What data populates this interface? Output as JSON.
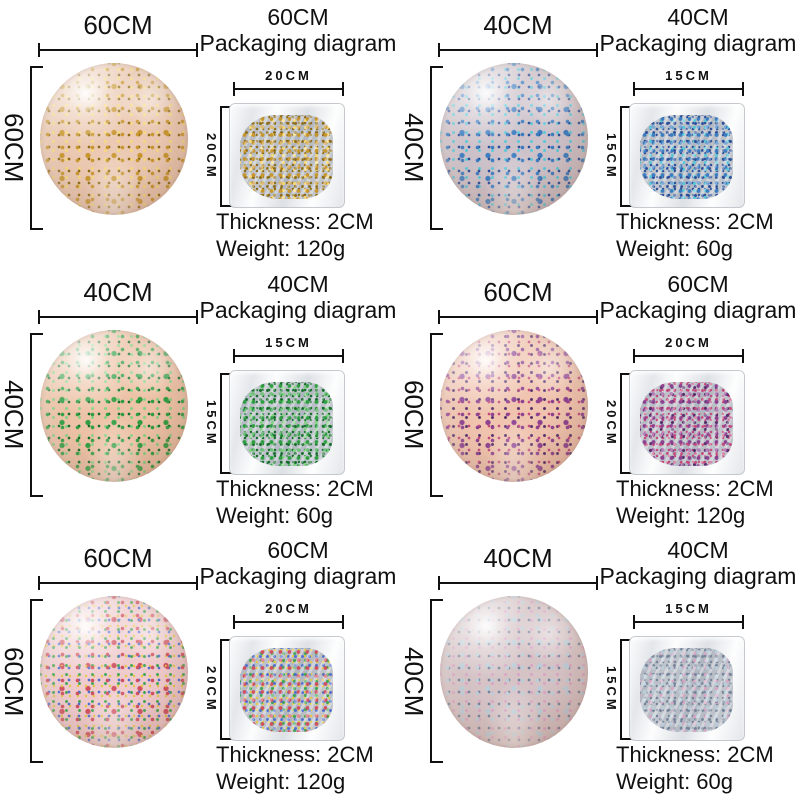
{
  "page": {
    "background": "#ffffff",
    "text_color": "#101010"
  },
  "products": [
    {
      "id": "gold-60cm",
      "ball_diameter_label": "60CM",
      "ball_height_label": "60CM",
      "packaging_title_size": "60CM",
      "packaging_title_text": "Packaging diagram",
      "bag_width_label": "20CM",
      "bag_height_label": "20CM",
      "thickness_text": "Thickness: 2CM",
      "weight_text": "Weight: 120g",
      "glitter_color_name": "gold",
      "colors": {
        "base": "#ebc9b2",
        "glitter1": "#c8962e",
        "glitter2": "#8f6c18",
        "glitter3": "#f7d977"
      }
    },
    {
      "id": "blue-40cm",
      "ball_diameter_label": "40CM",
      "ball_height_label": "40CM",
      "packaging_title_size": "40CM",
      "packaging_title_text": "Packaging diagram",
      "bag_width_label": "15CM",
      "bag_height_label": "15CM",
      "thickness_text": "Thickness: 2CM",
      "weight_text": "Weight: 60g",
      "glitter_color_name": "blue",
      "colors": {
        "base": "#cdc2ca",
        "glitter1": "#3c7cc0",
        "glitter2": "#2b4f99",
        "glitter3": "#56c8d8"
      }
    },
    {
      "id": "green-40cm",
      "ball_diameter_label": "40CM",
      "ball_height_label": "40CM",
      "packaging_title_size": "40CM",
      "packaging_title_text": "Packaging diagram",
      "bag_width_label": "15CM",
      "bag_height_label": "15CM",
      "thickness_text": "Thickness: 2CM",
      "weight_text": "Weight: 60g",
      "glitter_color_name": "green",
      "colors": {
        "base": "#edc3a7",
        "glitter1": "#2f9e42",
        "glitter2": "#156d2a",
        "glitter3": "#82d382"
      }
    },
    {
      "id": "purple-60cm",
      "ball_diameter_label": "60CM",
      "ball_height_label": "60CM",
      "packaging_title_size": "60CM",
      "packaging_title_text": "Packaging diagram",
      "bag_width_label": "20CM",
      "bag_height_label": "20CM",
      "thickness_text": "Thickness: 2CM",
      "weight_text": "Weight: 120g",
      "glitter_color_name": "purple",
      "colors": {
        "base": "#f0c4af",
        "glitter1": "#8c4191",
        "glitter2": "#c4497c",
        "glitter3": "#55306e"
      }
    },
    {
      "id": "multicolor-60cm",
      "ball_diameter_label": "60CM",
      "ball_height_label": "60CM",
      "packaging_title_size": "60CM",
      "packaging_title_text": "Packaging diagram",
      "bag_width_label": "20CM",
      "bag_height_label": "20CM",
      "thickness_text": "Thickness: 2CM",
      "weight_text": "Weight: 120g",
      "glitter_color_name": "multicolor",
      "colors": {
        "base": "#f0cbce",
        "glitter1": "#d05060",
        "glitter2": "#4f6fd0",
        "glitter3": "#43a657",
        "glitter4": "#e3c84a"
      }
    },
    {
      "id": "silver-40cm",
      "ball_diameter_label": "40CM",
      "ball_height_label": "40CM",
      "packaging_title_size": "40CM",
      "packaging_title_text": "Packaging diagram",
      "bag_width_label": "15CM",
      "bag_height_label": "15CM",
      "thickness_text": "Thickness: 2CM",
      "weight_text": "Weight: 60g",
      "glitter_color_name": "silver holographic",
      "colors": {
        "base": "#d5c3c6",
        "glitter1": "#bacdd8",
        "glitter2": "#75849a",
        "glitter3": "#d9a4c4"
      }
    }
  ]
}
